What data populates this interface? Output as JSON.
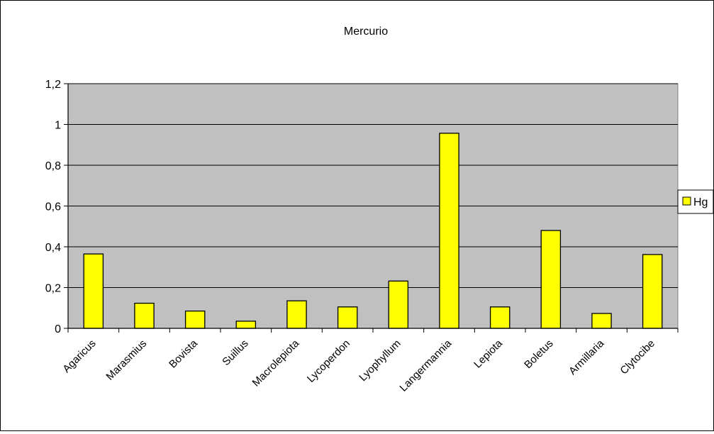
{
  "chart_data": {
    "type": "bar",
    "title": "Mercurio",
    "xlabel": "",
    "ylabel": "",
    "categories": [
      "Agaricus",
      "Marasmius",
      "Bovista",
      "Suillus",
      "Macrolepiota",
      "Lycoperdon",
      "Lyophyllum",
      "Langermannia",
      "Lepiota",
      "Boletus",
      "Armillaria",
      "Clytocibe"
    ],
    "series": [
      {
        "name": "Hg",
        "values": [
          0.365,
          0.123,
          0.085,
          0.035,
          0.135,
          0.105,
          0.232,
          0.957,
          0.105,
          0.48,
          0.073,
          0.362
        ],
        "color": "#ffff00"
      }
    ],
    "ylim": [
      0,
      1.2
    ],
    "yticks": [
      "0",
      "0,2",
      "0,4",
      "0,6",
      "0,8",
      "1",
      "1,2"
    ],
    "grid": true,
    "legend_position": "right",
    "colors": {
      "plot_background": "#c0c0c0",
      "bar_fill": "#ffff00",
      "gridline": "#000000"
    }
  }
}
